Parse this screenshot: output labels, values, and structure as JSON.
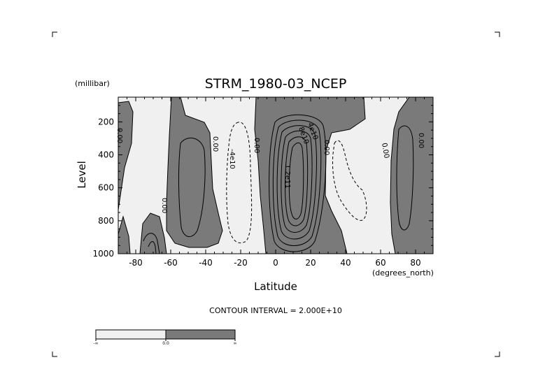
{
  "chart_data": {
    "type": "contour",
    "title": "STRM_1980-03_NCEP",
    "xlabel": "Latitude",
    "x_unit": "(degrees_north)",
    "ylabel": "Level",
    "y_unit": "(millibar)",
    "xlim": [
      -90,
      90
    ],
    "ylim": [
      1000,
      50
    ],
    "y_reversed": true,
    "x_ticks": [
      "-80",
      "-60",
      "-40",
      "-20",
      "0",
      "20",
      "40",
      "60",
      "80"
    ],
    "x_tick_values": [
      -80,
      -60,
      -40,
      -20,
      0,
      20,
      40,
      60,
      80
    ],
    "y_ticks": [
      "200",
      "400",
      "600",
      "800",
      "1000"
    ],
    "y_tick_values": [
      200,
      400,
      600,
      800,
      1000
    ],
    "contour_interval_text": "CONTOUR INTERVAL = 2.000E+10",
    "contour_labels": [
      {
        "text": "0.00",
        "lat": -87,
        "p": 200
      },
      {
        "text": "0.00",
        "lat": -63,
        "p": 700
      },
      {
        "text": "0.00",
        "lat": -32,
        "p": 280
      },
      {
        "text": "-4e10",
        "lat": -22,
        "p": 380
      },
      {
        "text": "0.00",
        "lat": -12,
        "p": 300
      },
      {
        "text": "4e10",
        "lat": 12,
        "p": 240
      },
      {
        "text": "8e10",
        "lat": 8,
        "p": 280
      },
      {
        "text": "1.2e11",
        "lat": 8,
        "p": 520
      },
      {
        "text": "0.00",
        "lat": 30,
        "p": 300
      },
      {
        "text": "0.00",
        "lat": 60,
        "p": 340
      },
      {
        "text": "0.00",
        "lat": 83,
        "p": 260
      }
    ],
    "colorbar": {
      "labels": [
        "-∞",
        "0.0",
        "∞"
      ],
      "colors": [
        "#f0f0f0",
        "#7a7a7a"
      ]
    },
    "colors": {
      "positive": "#7a7a7a",
      "negative": "#f0f0f0"
    }
  }
}
